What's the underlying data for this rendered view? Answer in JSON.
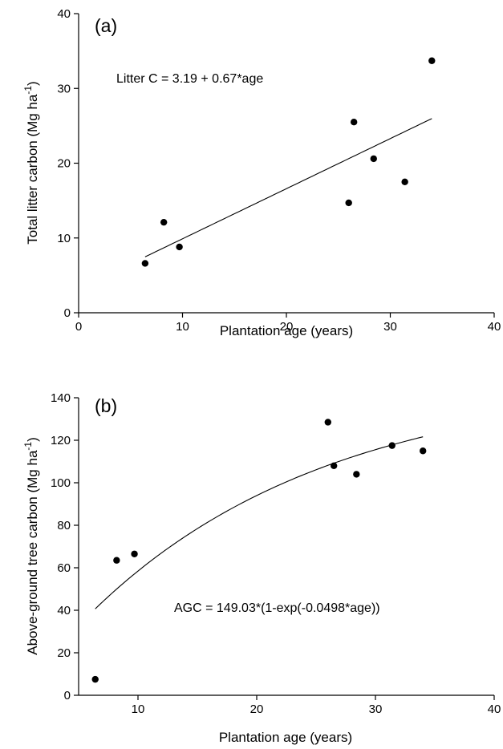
{
  "chart_data": [
    {
      "type": "scatter",
      "panel_label": "(a)",
      "xlabel": "Plantation age (years)",
      "ylabel_main": "Total litter carbon (Mg ha",
      "ylabel_sup": "-1",
      "ylabel_end": ")",
      "xlim": [
        0,
        40
      ],
      "ylim": [
        0,
        40
      ],
      "xticks": [
        0,
        10,
        20,
        30,
        40
      ],
      "yticks": [
        0,
        10,
        20,
        30,
        40
      ],
      "x": [
        6.4,
        8.2,
        9.7,
        26.0,
        26.5,
        28.4,
        31.4,
        34.0
      ],
      "y": [
        6.6,
        12.1,
        8.8,
        14.7,
        25.5,
        20.6,
        17.5,
        33.7
      ],
      "fit": {
        "form": "linear",
        "intercept": 3.19,
        "slope": 0.67,
        "x_range": [
          6.4,
          34.0
        ]
      },
      "equation": "Litter C = 3.19 + 0.67*age",
      "grid": false
    },
    {
      "type": "scatter",
      "panel_label": "(b)",
      "xlabel": "Plantation age (years)",
      "ylabel_main": "Above-ground tree carbon (Mg ha",
      "ylabel_sup": "-1",
      "ylabel_end": ")",
      "xlim": [
        5,
        40
      ],
      "ylim": [
        0,
        140
      ],
      "xticks": [
        10,
        20,
        30,
        40
      ],
      "yticks": [
        0,
        20,
        40,
        60,
        80,
        100,
        120,
        140
      ],
      "x": [
        6.4,
        8.2,
        9.7,
        26.0,
        26.5,
        28.4,
        31.4,
        34.0
      ],
      "y": [
        7.5,
        63.5,
        66.5,
        128.5,
        108.0,
        104.0,
        117.5,
        115.0
      ],
      "fit": {
        "form": "exponential_rise",
        "a": 149.03,
        "b": 0.0498,
        "x_range": [
          6.4,
          34.0
        ]
      },
      "equation": "AGC = 149.03*(1-exp(-0.0498*age))",
      "grid": false
    }
  ]
}
